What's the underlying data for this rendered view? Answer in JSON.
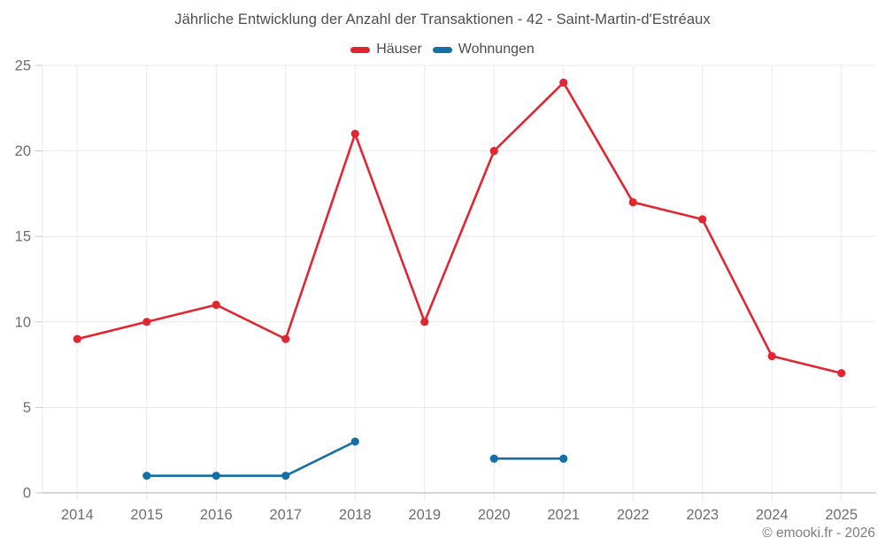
{
  "chart_data": {
    "type": "line",
    "title": "Jährliche Entwicklung der Anzahl der Transaktionen - 42 - Saint-Martin-d'Estréaux",
    "x": [
      2014,
      2015,
      2016,
      2017,
      2018,
      2019,
      2020,
      2021,
      2022,
      2023,
      2024,
      2025
    ],
    "series": [
      {
        "name": "Häuser",
        "color": "#e02630",
        "values": [
          9,
          10,
          11,
          9,
          21,
          10,
          20,
          24,
          17,
          16,
          8,
          7
        ]
      },
      {
        "name": "Wohnungen",
        "color": "#146fa8",
        "values": [
          null,
          1,
          1,
          1,
          3,
          null,
          2,
          2,
          null,
          null,
          null,
          null
        ]
      }
    ],
    "xlabel": "",
    "ylabel": "",
    "ylim": [
      0,
      25
    ],
    "yticks": [
      0,
      5,
      10,
      15,
      20,
      25
    ],
    "grid": true,
    "legend_position": "top"
  },
  "footer": {
    "text": "© emooki.fr - 2026"
  },
  "colors": {
    "background": "#ffffff",
    "grid": "#e9e9e9",
    "axis": "#c9c9c9",
    "tick_label": "#6e6e6e",
    "title_text": "#4d4d4d",
    "legend_text": "#4d4d4d",
    "footer_text": "#7d7d7d"
  }
}
